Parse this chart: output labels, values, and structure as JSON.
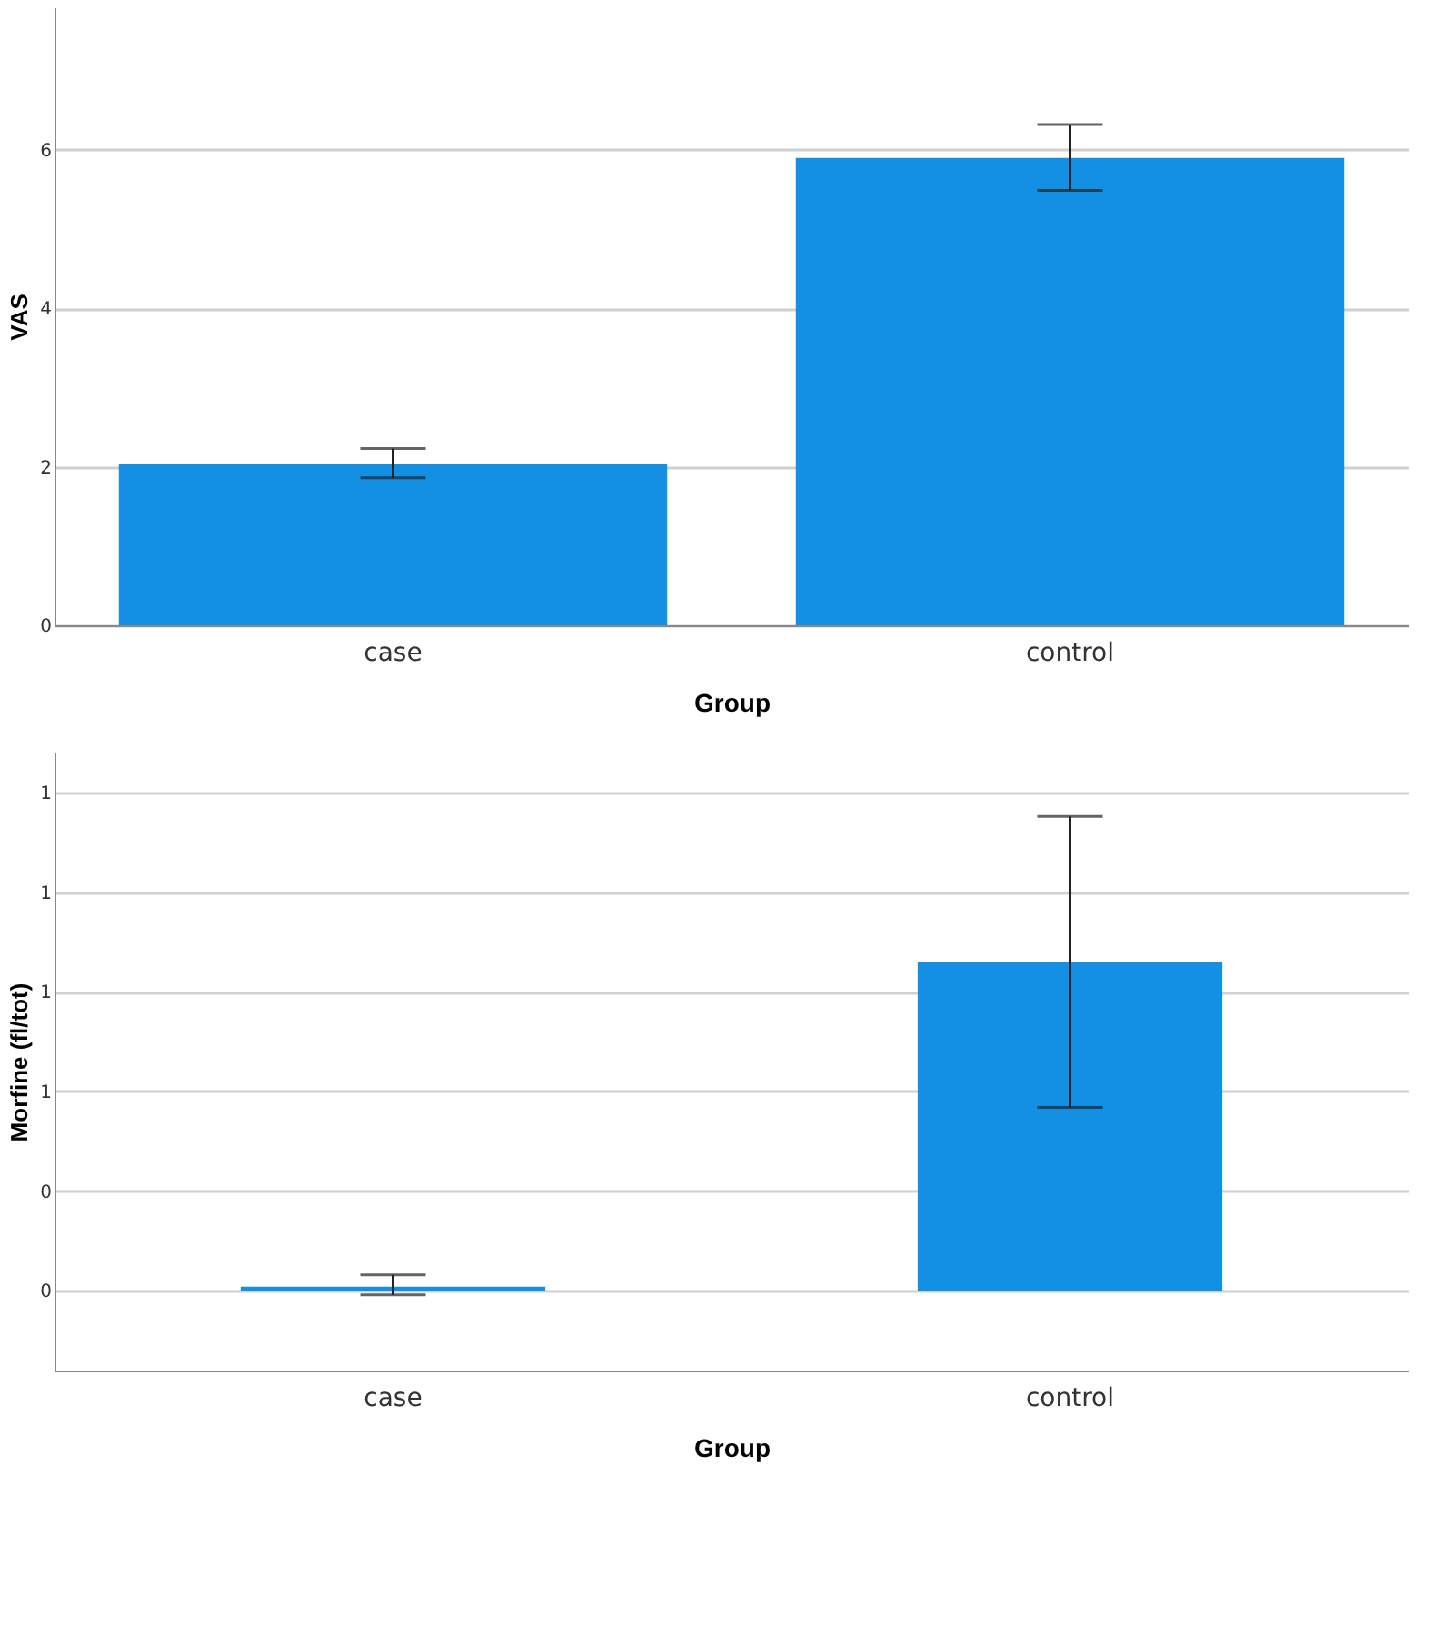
{
  "chart_data": [
    {
      "type": "bar",
      "categories": [
        "case",
        "control"
      ],
      "values": [
        2.03,
        5.9
      ],
      "errors": [
        [
          1.86,
          2.23
        ],
        [
          5.49,
          6.32
        ]
      ],
      "color": "#1390e4",
      "xlabel": "Group",
      "ylabel": "VAS",
      "ylim": [
        0,
        7.8
      ],
      "yticks": [
        0,
        2,
        4,
        6
      ],
      "grid": "y"
    },
    {
      "type": "bar",
      "categories": [
        "case",
        "control"
      ],
      "values": [
        0.01,
        0.825
      ],
      "errors": [
        [
          -0.01,
          0.04
        ],
        [
          0.46,
          1.19
        ]
      ],
      "color": "#1390e4",
      "xlabel": "Group",
      "ylabel": "Morfine (fl/tot)",
      "ylim": [
        -0.2,
        1.35
      ],
      "yticks": [
        0,
        {
          "value": 0.25,
          "label": "0"
        },
        {
          "value": 0.5,
          "label": "1"
        },
        {
          "value": 0.75,
          "label": "1"
        },
        {
          "value": 1,
          "label": "1"
        },
        {
          "value": 1.25,
          "label": "1"
        }
      ],
      "grid": "y"
    }
  ]
}
